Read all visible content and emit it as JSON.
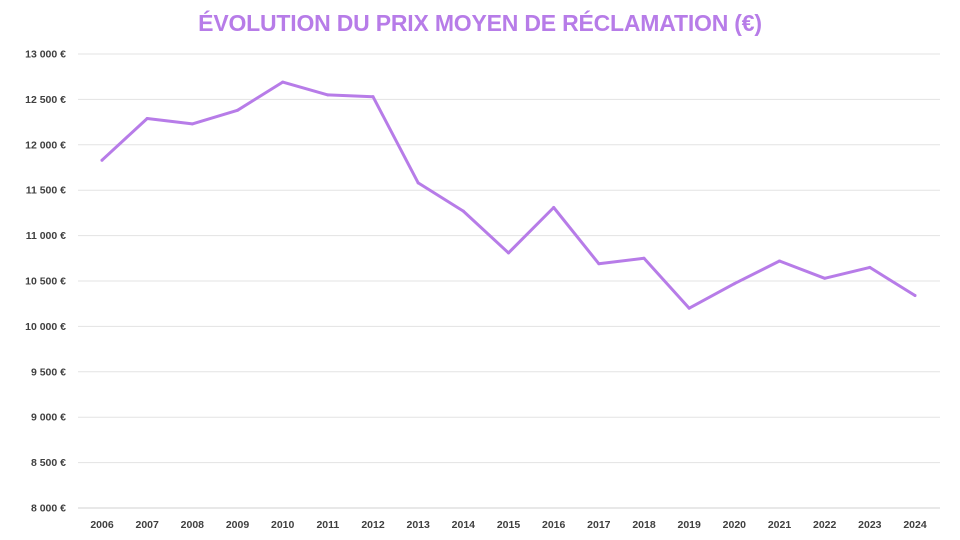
{
  "title": "ÉVOLUTION DU PRIX MOYEN DE RÉCLAMATION (€)",
  "colors": {
    "line": "#b77ce8",
    "title": "#b77ce8",
    "grid": "#e3e3e3",
    "tick_text": "#404040"
  },
  "chart_data": {
    "type": "line",
    "title": "ÉVOLUTION DU PRIX MOYEN DE RÉCLAMATION (€)",
    "xlabel": "",
    "ylabel": "",
    "grid": "horizontal",
    "legend": "none",
    "ylim": [
      8000,
      13000
    ],
    "yticks": [
      8000,
      8500,
      9000,
      9500,
      10000,
      10500,
      11000,
      11500,
      12000,
      12500,
      13000
    ],
    "ytick_labels": [
      "8 000 €",
      "8 500 €",
      "9 000 €",
      "9 500 €",
      "10 000 €",
      "10 500 €",
      "11 000 €",
      "11 500 €",
      "12 000 €",
      "12 500 €",
      "13 000 €"
    ],
    "categories": [
      "2006",
      "2007",
      "2008",
      "2009",
      "2010",
      "2011",
      "2012",
      "2013",
      "2014",
      "2015",
      "2016",
      "2017",
      "2018",
      "2019",
      "2020",
      "2021",
      "2022",
      "2023",
      "2024"
    ],
    "series": [
      {
        "values": [
          11830,
          12290,
          12230,
          12380,
          12690,
          12550,
          12530,
          11580,
          11270,
          10810,
          11310,
          10690,
          10750,
          10200,
          10470,
          10720,
          10530,
          10650,
          10340
        ]
      }
    ]
  }
}
